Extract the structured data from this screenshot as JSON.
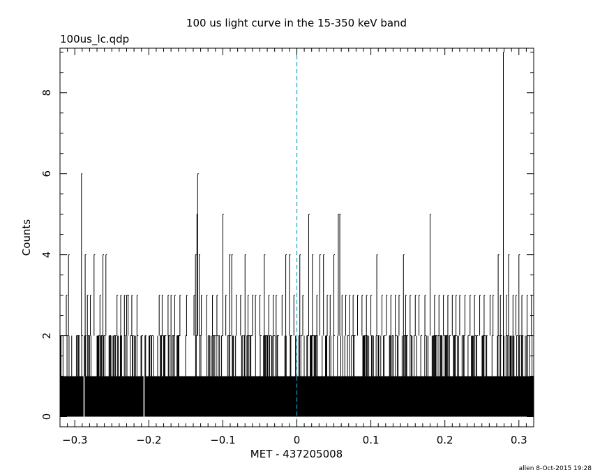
{
  "chart_data": {
    "type": "bar",
    "title": "100 us light curve in the 15-350 keV band",
    "subtitle": "100us_lc.qdp",
    "xlabel": "MET - 437205008",
    "ylabel": "Counts",
    "xlim": [
      -0.32,
      0.32
    ],
    "ylim": [
      -0.25,
      9.1
    ],
    "x_ticks": [
      -0.3,
      -0.2,
      -0.1,
      0,
      0.1,
      0.2,
      0.3
    ],
    "x_tick_labels": [
      "−0.3",
      "−0.2",
      "−0.1",
      "0",
      "0.1",
      "0.2",
      "0.3"
    ],
    "y_ticks": [
      0,
      2,
      4,
      6,
      8
    ],
    "y_tick_labels": [
      "0",
      "2",
      "4",
      "6",
      "8"
    ],
    "bin_width": 0.0001,
    "reference_line": {
      "x": 0,
      "color": "#1a9fd1",
      "style": "dashed"
    },
    "series": [
      {
        "values_note": "",
        "baseline": 1,
        "gaps": [
          -0.2875,
          -0.2065
        ],
        "peaks": [
          {
            "x": -0.291,
            "y": 6
          },
          {
            "x": -0.3115,
            "y": 3
          },
          {
            "x": -0.3085,
            "y": 4
          },
          {
            "x": -0.286,
            "y": 4
          },
          {
            "x": -0.283,
            "y": 3
          },
          {
            "x": -0.279,
            "y": 3
          },
          {
            "x": -0.274,
            "y": 4
          },
          {
            "x": -0.266,
            "y": 3
          },
          {
            "x": -0.262,
            "y": 4
          },
          {
            "x": -0.258,
            "y": 4
          },
          {
            "x": -0.243,
            "y": 3
          },
          {
            "x": -0.238,
            "y": 3
          },
          {
            "x": -0.233,
            "y": 3
          },
          {
            "x": -0.23,
            "y": 3
          },
          {
            "x": -0.228,
            "y": 3
          },
          {
            "x": -0.223,
            "y": 3
          },
          {
            "x": -0.216,
            "y": 3
          },
          {
            "x": -0.186,
            "y": 3
          },
          {
            "x": -0.182,
            "y": 3
          },
          {
            "x": -0.174,
            "y": 3
          },
          {
            "x": -0.17,
            "y": 3
          },
          {
            "x": -0.165,
            "y": 3
          },
          {
            "x": -0.158,
            "y": 3
          },
          {
            "x": -0.149,
            "y": 3
          },
          {
            "x": -0.139,
            "y": 3
          },
          {
            "x": -0.137,
            "y": 4
          },
          {
            "x": -0.135,
            "y": 5
          },
          {
            "x": -0.134,
            "y": 6
          },
          {
            "x": -0.132,
            "y": 4
          },
          {
            "x": -0.129,
            "y": 3
          },
          {
            "x": -0.122,
            "y": 3
          },
          {
            "x": -0.114,
            "y": 3
          },
          {
            "x": -0.108,
            "y": 3
          },
          {
            "x": -0.1,
            "y": 5
          },
          {
            "x": -0.096,
            "y": 3
          },
          {
            "x": -0.091,
            "y": 4
          },
          {
            "x": -0.088,
            "y": 4
          },
          {
            "x": -0.082,
            "y": 3
          },
          {
            "x": -0.076,
            "y": 3
          },
          {
            "x": -0.07,
            "y": 4
          },
          {
            "x": -0.066,
            "y": 3
          },
          {
            "x": -0.06,
            "y": 3
          },
          {
            "x": -0.056,
            "y": 3
          },
          {
            "x": -0.05,
            "y": 3
          },
          {
            "x": -0.044,
            "y": 4
          },
          {
            "x": -0.038,
            "y": 3
          },
          {
            "x": -0.032,
            "y": 3
          },
          {
            "x": -0.028,
            "y": 3
          },
          {
            "x": -0.02,
            "y": 3
          },
          {
            "x": -0.015,
            "y": 4
          },
          {
            "x": -0.01,
            "y": 4
          },
          {
            "x": -0.004,
            "y": 3
          },
          {
            "x": 0.004,
            "y": 4
          },
          {
            "x": 0.008,
            "y": 3
          },
          {
            "x": 0.016,
            "y": 5
          },
          {
            "x": 0.021,
            "y": 4
          },
          {
            "x": 0.027,
            "y": 3
          },
          {
            "x": 0.031,
            "y": 4
          },
          {
            "x": 0.036,
            "y": 4
          },
          {
            "x": 0.041,
            "y": 3
          },
          {
            "x": 0.045,
            "y": 3
          },
          {
            "x": 0.05,
            "y": 4
          },
          {
            "x": 0.056,
            "y": 5
          },
          {
            "x": 0.058,
            "y": 5
          },
          {
            "x": 0.061,
            "y": 3
          },
          {
            "x": 0.066,
            "y": 3
          },
          {
            "x": 0.071,
            "y": 3
          },
          {
            "x": 0.076,
            "y": 3
          },
          {
            "x": 0.082,
            "y": 3
          },
          {
            "x": 0.088,
            "y": 3
          },
          {
            "x": 0.094,
            "y": 3
          },
          {
            "x": 0.1,
            "y": 3
          },
          {
            "x": 0.108,
            "y": 4
          },
          {
            "x": 0.115,
            "y": 3
          },
          {
            "x": 0.121,
            "y": 3
          },
          {
            "x": 0.127,
            "y": 3
          },
          {
            "x": 0.133,
            "y": 3
          },
          {
            "x": 0.138,
            "y": 3
          },
          {
            "x": 0.144,
            "y": 4
          },
          {
            "x": 0.147,
            "y": 3
          },
          {
            "x": 0.153,
            "y": 3
          },
          {
            "x": 0.16,
            "y": 3
          },
          {
            "x": 0.165,
            "y": 3
          },
          {
            "x": 0.173,
            "y": 3
          },
          {
            "x": 0.18,
            "y": 5
          },
          {
            "x": 0.186,
            "y": 3
          },
          {
            "x": 0.192,
            "y": 3
          },
          {
            "x": 0.198,
            "y": 3
          },
          {
            "x": 0.204,
            "y": 3
          },
          {
            "x": 0.21,
            "y": 3
          },
          {
            "x": 0.215,
            "y": 3
          },
          {
            "x": 0.22,
            "y": 3
          },
          {
            "x": 0.227,
            "y": 3
          },
          {
            "x": 0.234,
            "y": 3
          },
          {
            "x": 0.24,
            "y": 3
          },
          {
            "x": 0.247,
            "y": 3
          },
          {
            "x": 0.253,
            "y": 3
          },
          {
            "x": 0.261,
            "y": 3
          },
          {
            "x": 0.265,
            "y": 3
          },
          {
            "x": 0.272,
            "y": 4
          },
          {
            "x": 0.275,
            "y": 3
          },
          {
            "x": 0.279,
            "y": 9
          },
          {
            "x": 0.283,
            "y": 3
          },
          {
            "x": 0.286,
            "y": 4
          },
          {
            "x": 0.292,
            "y": 3
          },
          {
            "x": 0.296,
            "y": 3
          },
          {
            "x": 0.3,
            "y": 4
          },
          {
            "x": 0.304,
            "y": 3
          },
          {
            "x": 0.311,
            "y": 3
          },
          {
            "x": 0.317,
            "y": 3
          }
        ]
      }
    ]
  },
  "footer": {
    "credit": "allen  8-Oct-2015 19:28"
  }
}
